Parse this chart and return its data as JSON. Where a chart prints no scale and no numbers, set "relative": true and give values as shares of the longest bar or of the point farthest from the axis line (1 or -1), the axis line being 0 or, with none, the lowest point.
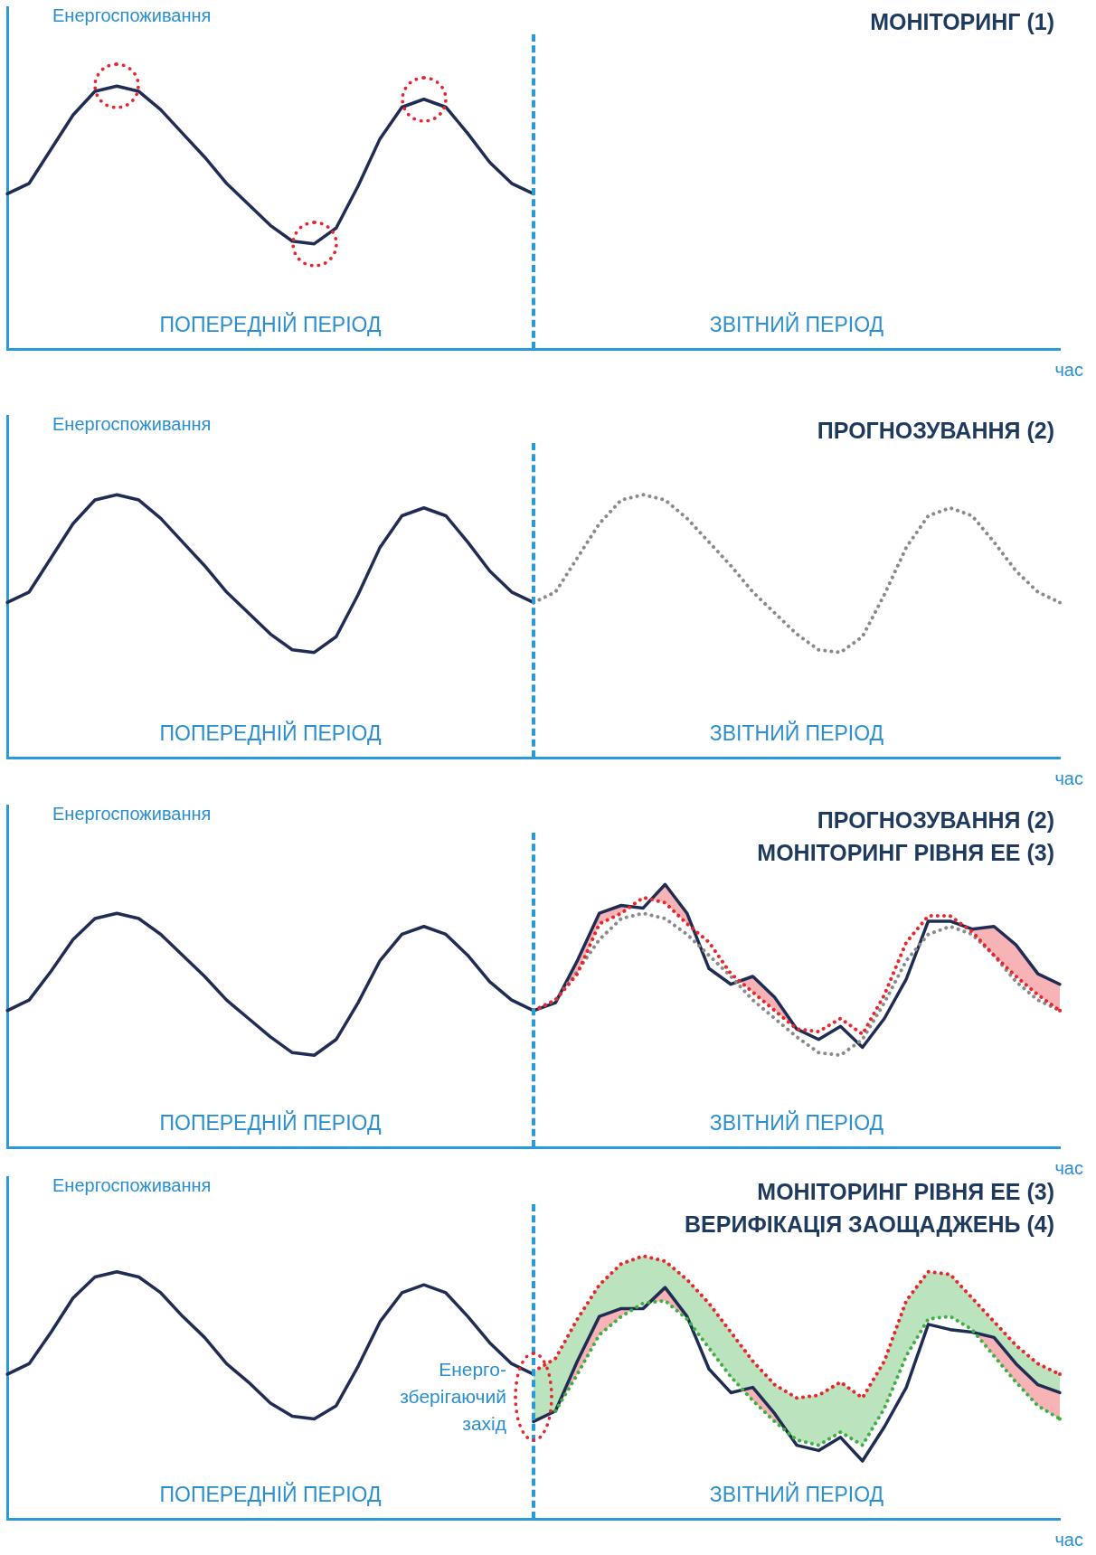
{
  "chart_data": [
    {
      "type": "line",
      "title": "МОНІТОРИНГ (1)",
      "ylabel": "Енергоспоживання",
      "xlabel": "час",
      "relative": true,
      "legend": false,
      "grid": false,
      "annotations": [
        "ПОПЕРЕДНІЙ ПЕРІОД",
        "ЗВІТНИЙ ПЕРІОД"
      ],
      "categories": [
        null,
        null,
        null,
        null,
        null,
        null,
        null,
        null,
        null,
        null,
        null,
        null,
        null,
        null,
        null,
        null,
        null,
        null,
        null,
        null,
        null,
        null,
        null,
        null,
        null,
        null,
        null,
        null,
        null,
        null,
        null,
        null,
        null,
        null,
        null,
        null,
        null,
        null,
        null,
        null,
        null,
        null,
        null,
        null,
        null,
        null,
        null,
        null,
        null
      ],
      "series": [
        {
          "color": "#1f2d55",
          "line_style": "solid",
          "values": [
            0.59,
            0.63,
            0.76,
            0.89,
            0.98,
            1,
            0.98,
            0.91,
            0.82,
            0.73,
            0.63,
            0.55,
            0.47,
            0.41,
            0.4,
            0.46,
            0.62,
            0.8,
            0.92,
            0.95,
            0.92,
            0.82,
            0.71,
            0.63,
            0.59,
            null,
            null,
            null,
            null,
            null,
            null,
            null,
            null,
            null,
            null,
            null,
            null,
            null,
            null,
            null,
            null,
            null,
            null,
            null,
            null,
            null,
            null,
            null,
            null
          ]
        }
      ]
    },
    {
      "type": "line",
      "title": "ПРОГНОЗУВАННЯ (2)",
      "ylabel": "Енергоспоживання",
      "xlabel": "час",
      "relative": true,
      "legend": false,
      "grid": false,
      "annotations": [
        "ПОПЕРЕДНІЙ ПЕРІОД",
        "ЗВІТНИЙ ПЕРІОД"
      ],
      "categories": [
        null,
        null,
        null,
        null,
        null,
        null,
        null,
        null,
        null,
        null,
        null,
        null,
        null,
        null,
        null,
        null,
        null,
        null,
        null,
        null,
        null,
        null,
        null,
        null,
        null,
        null,
        null,
        null,
        null,
        null,
        null,
        null,
        null,
        null,
        null,
        null,
        null,
        null,
        null,
        null,
        null,
        null,
        null,
        null,
        null,
        null,
        null,
        null,
        null
      ],
      "series": [
        {
          "color": "#1f2d55",
          "line_style": "solid",
          "values": [
            0.59,
            0.63,
            0.76,
            0.89,
            0.98,
            1,
            0.98,
            0.91,
            0.82,
            0.73,
            0.63,
            0.55,
            0.47,
            0.41,
            0.4,
            0.46,
            0.62,
            0.8,
            0.92,
            0.95,
            0.92,
            0.82,
            0.71,
            0.63,
            0.59,
            null,
            null,
            null,
            null,
            null,
            null,
            null,
            null,
            null,
            null,
            null,
            null,
            null,
            null,
            null,
            null,
            null,
            null,
            null,
            null,
            null,
            null,
            null,
            null
          ]
        },
        {
          "color": "#8a8a8a",
          "line_style": "dotted",
          "values": [
            null,
            null,
            null,
            null,
            null,
            null,
            null,
            null,
            null,
            null,
            null,
            null,
            null,
            null,
            null,
            null,
            null,
            null,
            null,
            null,
            null,
            null,
            null,
            null,
            0.59,
            0.63,
            0.76,
            0.89,
            0.98,
            1,
            0.98,
            0.91,
            0.82,
            0.73,
            0.63,
            0.55,
            0.47,
            0.41,
            0.4,
            0.46,
            0.62,
            0.8,
            0.92,
            0.95,
            0.92,
            0.82,
            0.71,
            0.63,
            0.59
          ]
        }
      ]
    },
    {
      "type": "line",
      "title": "ПРОГНОЗУВАННЯ (2)\nМОНІТОРИНГ РІВНЯ ЕЕ (3)",
      "ylabel": "Енергоспоживання",
      "xlabel": "час",
      "relative": true,
      "legend": false,
      "grid": false,
      "annotations": [
        "ПОПЕРЕДНІЙ ПЕРІОД",
        "ЗВІТНИЙ ПЕРІОД"
      ],
      "categories": [
        null,
        null,
        null,
        null,
        null,
        null,
        null,
        null,
        null,
        null,
        null,
        null,
        null,
        null,
        null,
        null,
        null,
        null,
        null,
        null,
        null,
        null,
        null,
        null,
        null,
        null,
        null,
        null,
        null,
        null,
        null,
        null,
        null,
        null,
        null,
        null,
        null,
        null,
        null,
        null,
        null,
        null,
        null,
        null,
        null,
        null,
        null,
        null,
        null
      ],
      "series": [
        {
          "color": "#e8262b",
          "line_style": "dotted",
          "values": [
            null,
            null,
            null,
            null,
            null,
            null,
            null,
            null,
            null,
            null,
            null,
            null,
            null,
            null,
            null,
            null,
            null,
            null,
            null,
            null,
            null,
            null,
            null,
            null,
            0.52,
            0.56,
            0.66,
            0.85,
            0.89,
            0.95,
            0.93,
            0.85,
            0.78,
            0.66,
            0.59,
            0.52,
            0.45,
            0.44,
            0.49,
            0.43,
            0.58,
            0.78,
            0.88,
            0.88,
            0.82,
            0.73,
            0.65,
            0.58,
            0.52
          ],
          "lower": [
            null,
            null,
            null,
            null,
            null,
            null,
            null,
            null,
            null,
            null,
            null,
            null,
            null,
            null,
            null,
            null,
            null,
            null,
            null,
            null,
            null,
            null,
            null,
            null,
            0.52,
            0.56,
            0.66,
            0.85,
            0.89,
            0.95,
            0.93,
            0.85,
            0.78,
            0.66,
            0.59,
            0.52,
            0.45,
            0.44,
            0.49,
            0.43,
            0.58,
            0.78,
            0.88,
            0.88,
            0.82,
            0.73,
            0.65,
            0.58,
            0.52
          ],
          "upper": [
            null,
            null,
            null,
            null,
            null,
            null,
            null,
            null,
            null,
            null,
            null,
            null,
            null,
            null,
            null,
            null,
            null,
            null,
            null,
            null,
            null,
            null,
            null,
            null,
            0.52,
            0.55,
            0.71,
            0.89,
            0.92,
            0.91,
            1,
            0.89,
            0.68,
            0.62,
            0.65,
            0.57,
            0.45,
            0.41,
            0.46,
            0.38,
            0.49,
            0.64,
            0.86,
            0.86,
            0.83,
            0.84,
            0.77,
            0.66,
            0.62
          ]
        },
        {
          "color": "#8a8a8a",
          "line_style": "dotted",
          "values": [
            null,
            null,
            null,
            null,
            null,
            null,
            null,
            null,
            null,
            null,
            null,
            null,
            null,
            null,
            null,
            null,
            null,
            null,
            null,
            null,
            null,
            null,
            null,
            null,
            0.52,
            0.56,
            0.67,
            0.79,
            0.87,
            0.89,
            0.87,
            0.81,
            0.73,
            0.65,
            0.56,
            0.49,
            0.42,
            0.36,
            0.35,
            0.41,
            0.55,
            0.71,
            0.81,
            0.84,
            0.81,
            0.73,
            0.63,
            0.56,
            0.52
          ]
        },
        {
          "color": "#1f2d55",
          "line_style": "solid",
          "values": [
            0.52,
            0.56,
            0.67,
            0.79,
            0.87,
            0.89,
            0.87,
            0.81,
            0.73,
            0.65,
            0.56,
            0.49,
            0.42,
            0.36,
            0.35,
            0.41,
            0.55,
            0.71,
            0.81,
            0.84,
            0.81,
            0.73,
            0.63,
            0.56,
            0.52,
            0.55,
            0.71,
            0.89,
            0.92,
            0.91,
            1,
            0.89,
            0.68,
            0.62,
            0.65,
            0.57,
            0.45,
            0.41,
            0.46,
            0.38,
            0.49,
            0.64,
            0.86,
            0.86,
            0.83,
            0.84,
            0.77,
            0.66,
            0.62
          ]
        }
      ]
    },
    {
      "type": "line",
      "title": "МОНІТОРИНГ РІВНЯ ЕЕ (3)\nВЕРИФІКАЦІЯ ЗАОЩАДЖЕНЬ (4)",
      "ylabel": "Енергоспоживання",
      "xlabel": "час",
      "relative": true,
      "legend": false,
      "grid": false,
      "annotations": [
        "ПОПЕРЕДНІЙ ПЕРІОД",
        "ЗВІТНИЙ ПЕРІОД",
        "Енерго-\nзберігаючий\nзахід"
      ],
      "categories": [
        null,
        null,
        null,
        null,
        null,
        null,
        null,
        null,
        null,
        null,
        null,
        null,
        null,
        null,
        null,
        null,
        null,
        null,
        null,
        null,
        null,
        null,
        null,
        null,
        null,
        null,
        null,
        null,
        null,
        null,
        null,
        null,
        null,
        null,
        null,
        null,
        null,
        null,
        null,
        null,
        null,
        null,
        null,
        null,
        null,
        null,
        null,
        null,
        null
      ],
      "series": [
        {
          "color": "#3cb043",
          "line_style": "dotted",
          "values": [
            null,
            null,
            null,
            null,
            null,
            null,
            null,
            null,
            null,
            null,
            null,
            null,
            null,
            null,
            null,
            null,
            null,
            null,
            null,
            null,
            null,
            null,
            null,
            null,
            null,
            0.41,
            0.55,
            0.7,
            0.77,
            0.82,
            0.83,
            0.76,
            0.65,
            0.54,
            0.45,
            0.37,
            0.3,
            0.28,
            0.33,
            0.28,
            0.42,
            0.62,
            0.76,
            0.77,
            0.72,
            0.62,
            0.52,
            0.43,
            0.38
          ],
          "lower": [
            null,
            null,
            null,
            null,
            null,
            null,
            null,
            null,
            null,
            null,
            null,
            null,
            null,
            null,
            null,
            null,
            null,
            null,
            null,
            null,
            null,
            null,
            null,
            null,
            0.37,
            0.41,
            0.55,
            0.7,
            0.77,
            0.82,
            0.83,
            0.76,
            0.65,
            0.54,
            0.45,
            0.37,
            0.3,
            0.28,
            0.33,
            0.28,
            0.42,
            0.62,
            0.76,
            0.77,
            0.72,
            0.62,
            0.52,
            0.43,
            0.38
          ],
          "upper": [
            null,
            null,
            null,
            null,
            null,
            null,
            null,
            null,
            null,
            null,
            null,
            null,
            null,
            null,
            null,
            null,
            null,
            null,
            null,
            null,
            null,
            null,
            null,
            null,
            0.56,
            0.61,
            0.76,
            0.89,
            0.97,
            1,
            0.98,
            0.91,
            0.82,
            0.71,
            0.6,
            0.51,
            0.46,
            0.47,
            0.52,
            0.46,
            0.6,
            0.83,
            0.94,
            0.93,
            0.84,
            0.75,
            0.66,
            0.59,
            0.55
          ]
        },
        {
          "color": "#e8262b",
          "line_style": "dotted",
          "values": [
            null,
            null,
            null,
            null,
            null,
            null,
            null,
            null,
            null,
            null,
            null,
            null,
            null,
            null,
            null,
            null,
            null,
            null,
            null,
            null,
            null,
            null,
            null,
            null,
            0.56,
            0.61,
            0.76,
            0.89,
            0.97,
            1,
            0.98,
            0.91,
            0.82,
            0.71,
            0.6,
            0.51,
            0.46,
            0.47,
            0.52,
            0.46,
            0.6,
            0.83,
            0.94,
            0.93,
            0.84,
            0.75,
            0.66,
            0.59,
            0.55
          ],
          "lower": [
            null,
            null,
            null,
            null,
            null,
            null,
            null,
            null,
            null,
            null,
            null,
            null,
            null,
            null,
            null,
            null,
            null,
            null,
            null,
            null,
            null,
            null,
            null,
            null,
            null,
            0.41,
            0.55,
            0.7,
            0.77,
            0.82,
            0.83,
            0.76,
            0.65,
            0.54,
            0.45,
            0.37,
            0.3,
            0.28,
            0.33,
            0.28,
            0.42,
            0.62,
            0.76,
            0.77,
            0.72,
            0.62,
            0.52,
            0.43,
            0.38
          ],
          "upper": [
            null,
            null,
            null,
            null,
            null,
            null,
            null,
            null,
            null,
            null,
            null,
            null,
            null,
            null,
            null,
            null,
            null,
            null,
            null,
            null,
            null,
            null,
            null,
            null,
            null,
            0.41,
            0.6,
            0.77,
            0.8,
            0.8,
            0.88,
            0.77,
            0.57,
            0.48,
            0.5,
            0.4,
            0.28,
            0.26,
            0.31,
            0.22,
            0.35,
            0.5,
            0.74,
            0.72,
            0.71,
            0.69,
            0.59,
            0.51,
            0.48
          ]
        },
        {
          "color": "#1f2d55",
          "line_style": "solid",
          "values": [
            0.55,
            0.59,
            0.71,
            0.84,
            0.92,
            0.94,
            0.92,
            0.86,
            0.77,
            0.69,
            0.59,
            0.52,
            0.44,
            0.39,
            0.38,
            0.43,
            0.58,
            0.75,
            0.86,
            0.89,
            0.86,
            0.77,
            0.67,
            0.59,
            0.55,
            null,
            null,
            null,
            null,
            null,
            null,
            null,
            null,
            null,
            null,
            null,
            null,
            null,
            null,
            null,
            null,
            null,
            null,
            null,
            null,
            null,
            null,
            null,
            null
          ]
        },
        {
          "color": "#1f2d55",
          "line_style": "solid",
          "values": [
            null,
            null,
            null,
            null,
            null,
            null,
            null,
            null,
            null,
            null,
            null,
            null,
            null,
            null,
            null,
            null,
            null,
            null,
            null,
            null,
            null,
            null,
            null,
            null,
            0.37,
            0.41,
            0.6,
            0.77,
            0.8,
            0.8,
            0.88,
            0.77,
            0.57,
            0.48,
            0.5,
            0.4,
            0.28,
            0.26,
            0.31,
            0.22,
            0.35,
            0.5,
            0.74,
            0.72,
            0.71,
            0.69,
            0.59,
            0.51,
            0.48
          ]
        }
      ]
    }
  ]
}
